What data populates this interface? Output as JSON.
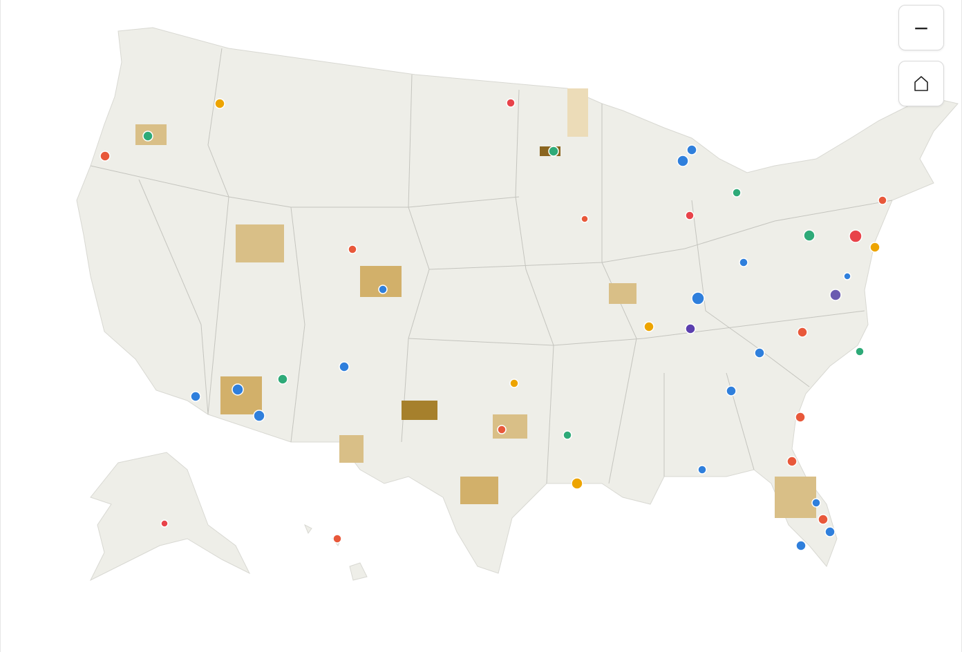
{
  "controls": {
    "zoom_out": "−"
  }
}
